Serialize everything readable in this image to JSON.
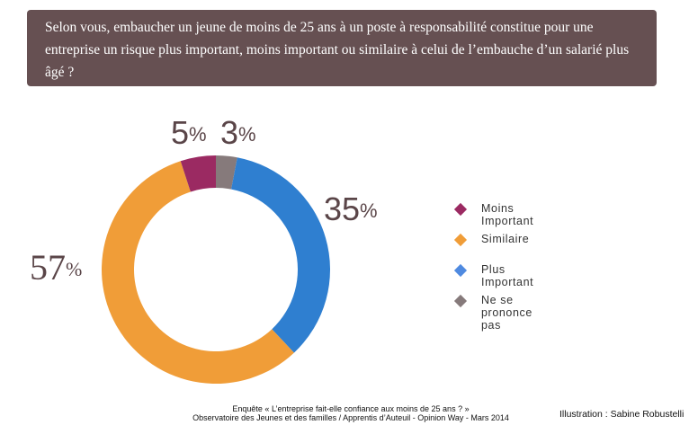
{
  "question": "Selon vous, embaucher un jeune de moins de 25 ans à un poste à responsabilité constitue pour une entreprise un risque plus important, moins important ou similaire à celui de l’embauche d’un salarié plus âgé ?",
  "labels": {
    "moins": {
      "value": "5",
      "sym": "%"
    },
    "nspp": {
      "value": "3",
      "sym": "%"
    },
    "plus": {
      "value": "35",
      "sym": "%"
    },
    "similaire": {
      "value": "57",
      "sym": "%"
    }
  },
  "legend": [
    {
      "label": "Moins Important",
      "color": "#9b2a62"
    },
    {
      "label": "Similaire",
      "color": "#f09d38"
    },
    {
      "label": "Plus Important",
      "color": "#2f7fd0"
    },
    {
      "label": "Ne se prononce pas",
      "color": "#867a7b"
    }
  ],
  "source": {
    "line1": "Enquête « L’entreprise fait-elle confiance aux moins de 25 ans ? »",
    "line2": "Observatoire des Jeunes et des familles / Apprentis d’Auteuil - Opinion Way - Mars 2014"
  },
  "credit": "Illustration : Sabine Robustelli",
  "chart_data": {
    "type": "pie",
    "variant": "donut",
    "title": "Selon vous, embaucher un jeune de moins de 25 ans à un poste à responsabilité constitue pour une entreprise un risque plus important, moins important ou similaire à celui de l’embauche d’un salarié plus âgé ?",
    "categories": [
      "Moins Important",
      "Similaire",
      "Plus Important",
      "Ne se prononce pas"
    ],
    "values": [
      5,
      57,
      35,
      3
    ],
    "unit": "%",
    "colors": [
      "#9b2a62",
      "#f09d38",
      "#2f7fd0",
      "#867a7b"
    ],
    "legend_position": "right",
    "source": "Enquête « L’entreprise fait-elle confiance aux moins de 25 ans ? » Observatoire des Jeunes et des familles / Apprentis d’Auteuil - Opinion Way - Mars 2014"
  }
}
